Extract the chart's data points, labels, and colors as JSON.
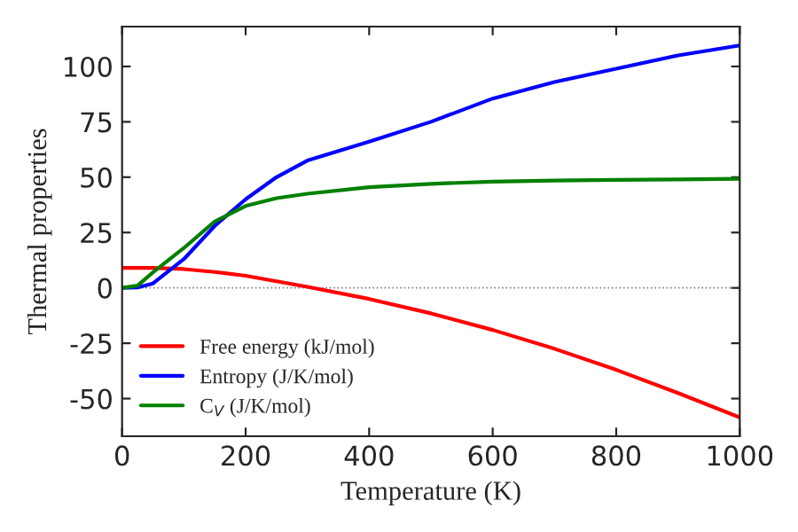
{
  "chart_data": {
    "type": "line",
    "xlabel": "Temperature (K)",
    "ylabel": "Thermal properties",
    "x": [
      0,
      25,
      50,
      100,
      150,
      200,
      250,
      300,
      400,
      500,
      600,
      700,
      800,
      900,
      1000
    ],
    "series": [
      {
        "name": "Free energy (kJ/mol)",
        "color": "#ff0000",
        "values": [
          9,
          9,
          9,
          8.5,
          7.2,
          5.5,
          3,
          0.5,
          -5,
          -11.5,
          -19,
          -27.5,
          -37,
          -47.5,
          -58.5
        ]
      },
      {
        "name": "Entropy (J/K/mol)",
        "color": "#0000ff",
        "values": [
          0,
          0.2,
          2,
          13,
          28,
          40,
          50,
          57.5,
          66,
          75,
          85.5,
          93,
          99,
          105,
          109.5
        ]
      },
      {
        "name": "C$_{V}$ (J/K/mol)",
        "color": "#008000",
        "values": [
          0,
          1,
          7,
          18,
          30,
          37,
          40.5,
          42.5,
          45.5,
          47,
          48,
          48.5,
          48.8,
          49,
          49.3
        ]
      }
    ],
    "xlim": [
      0,
      1000
    ],
    "xticks": [
      0,
      200,
      400,
      600,
      800,
      1000
    ],
    "ylim": [
      -67,
      118
    ],
    "yticks": [
      -50,
      -25,
      0,
      25,
      50,
      75,
      100
    ],
    "ref_lines": [
      {
        "axis": "y",
        "value": 0,
        "color": "#808080",
        "line_style": "dotted"
      }
    ],
    "legend": "bottom left",
    "grid": false
  }
}
